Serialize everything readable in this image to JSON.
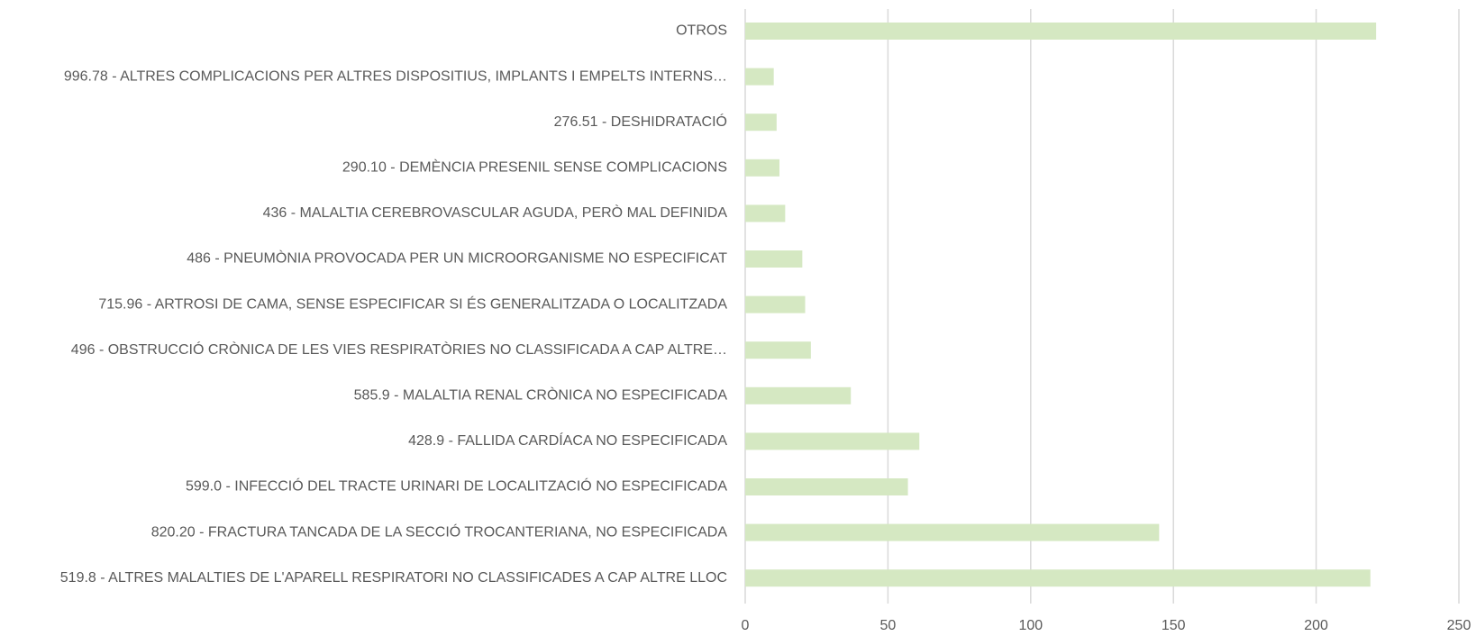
{
  "chart_data": {
    "type": "barh",
    "categories": [
      "OTROS",
      "996.78 - ALTRES COMPLICACIONS PER ALTRES DISPOSITIUS, IMPLANTS I EMPELTS INTERNS…",
      "276.51 - DESHIDRATACIÓ",
      "290.10 - DEMÈNCIA PRESENIL SENSE COMPLICACIONS",
      "436 - MALALTIA CEREBROVASCULAR AGUDA, PERÒ MAL DEFINIDA",
      "486 - PNEUMÒNIA PROVOCADA PER UN MICROORGANISME NO ESPECIFICAT",
      "715.96 - ARTROSI DE CAMA, SENSE ESPECIFICAR SI ÉS GENERALITZADA O LOCALITZADA",
      "496 - OBSTRUCCIÓ CRÒNICA DE LES VIES RESPIRATÒRIES NO CLASSIFICADA A CAP ALTRE…",
      "585.9 - MALALTIA RENAL CRÒNICA NO ESPECIFICADA",
      "428.9 - FALLIDA CARDÍACA NO ESPECIFICADA",
      "599.0 - INFECCIÓ DEL TRACTE URINARI DE LOCALITZACIÓ NO ESPECIFICADA",
      "820.20 - FRACTURA TANCADA DE LA SECCIÓ TROCANTERIANA, NO ESPECIFICADA",
      "519.8 - ALTRES MALALTIES DE L'APARELL RESPIRATORI NO CLASSIFICADES A CAP ALTRE LLOC"
    ],
    "values": [
      221,
      10,
      11,
      12,
      14,
      20,
      21,
      23,
      37,
      61,
      57,
      145,
      219
    ],
    "color": "#d5e8c2",
    "xlim": [
      0,
      250
    ],
    "xticks": [
      0,
      50,
      100,
      150,
      200,
      250
    ],
    "grid": true
  }
}
